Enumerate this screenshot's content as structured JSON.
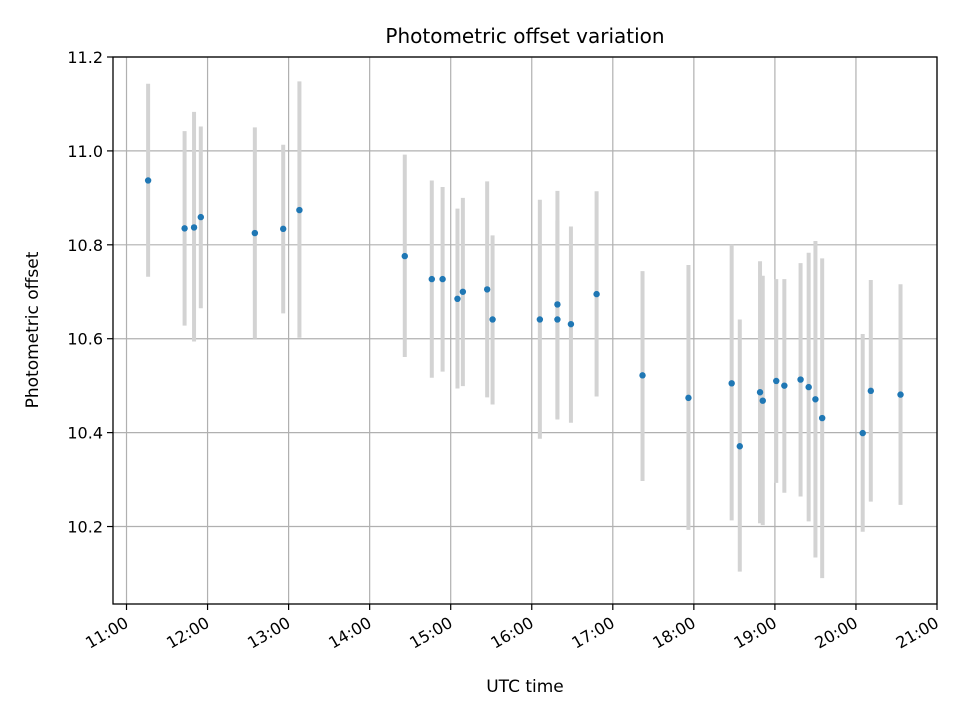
{
  "chart_data": {
    "type": "scatter",
    "title": "Photometric offset variation",
    "xlabel": "UTC time",
    "ylabel": "Photometric offset",
    "x_ticks": [
      "11:00",
      "12:00",
      "13:00",
      "14:00",
      "15:00",
      "16:00",
      "17:00",
      "18:00",
      "19:00",
      "20:00",
      "21:00"
    ],
    "y_ticks": [
      "10.2",
      "10.4",
      "10.6",
      "10.8",
      "11.0",
      "11.2"
    ],
    "xlim": [
      "10:50",
      "21:00"
    ],
    "ylim": [
      10.035,
      11.2
    ],
    "grid": true,
    "marker_color": "#1f77b4",
    "errorbar_color": "#d3d3d3",
    "points": [
      {
        "t": "11:16",
        "y": 10.937,
        "lo": 10.732,
        "hi": 11.143
      },
      {
        "t": "11:43",
        "y": 10.835,
        "lo": 10.628,
        "hi": 11.042
      },
      {
        "t": "11:50",
        "y": 10.837,
        "lo": 10.594,
        "hi": 11.083
      },
      {
        "t": "11:55",
        "y": 10.859,
        "lo": 10.665,
        "hi": 11.052
      },
      {
        "t": "12:35",
        "y": 10.825,
        "lo": 10.6,
        "hi": 11.05
      },
      {
        "t": "12:56",
        "y": 10.834,
        "lo": 10.654,
        "hi": 11.013
      },
      {
        "t": "13:08",
        "y": 10.874,
        "lo": 10.602,
        "hi": 11.148
      },
      {
        "t": "14:26",
        "y": 10.776,
        "lo": 10.561,
        "hi": 10.992
      },
      {
        "t": "14:46",
        "y": 10.727,
        "lo": 10.517,
        "hi": 10.937
      },
      {
        "t": "14:54",
        "y": 10.727,
        "lo": 10.53,
        "hi": 10.923
      },
      {
        "t": "15:05",
        "y": 10.685,
        "lo": 10.494,
        "hi": 10.877
      },
      {
        "t": "15:09",
        "y": 10.7,
        "lo": 10.499,
        "hi": 10.9
      },
      {
        "t": "15:27",
        "y": 10.705,
        "lo": 10.475,
        "hi": 10.935
      },
      {
        "t": "15:31",
        "y": 10.641,
        "lo": 10.46,
        "hi": 10.82
      },
      {
        "t": "16:06",
        "y": 10.641,
        "lo": 10.387,
        "hi": 10.896
      },
      {
        "t": "16:19",
        "y": 10.641,
        "lo": 10.428,
        "hi": 10.852
      },
      {
        "t": "16:19",
        "y": 10.673,
        "lo": 10.43,
        "hi": 10.915
      },
      {
        "t": "16:29",
        "y": 10.631,
        "lo": 10.421,
        "hi": 10.839
      },
      {
        "t": "16:48",
        "y": 10.695,
        "lo": 10.477,
        "hi": 10.914
      },
      {
        "t": "17:22",
        "y": 10.522,
        "lo": 10.297,
        "hi": 10.744
      },
      {
        "t": "17:56",
        "y": 10.474,
        "lo": 10.193,
        "hi": 10.757
      },
      {
        "t": "18:28",
        "y": 10.505,
        "lo": 10.213,
        "hi": 10.8
      },
      {
        "t": "18:34",
        "y": 10.371,
        "lo": 10.104,
        "hi": 10.641
      },
      {
        "t": "18:49",
        "y": 10.486,
        "lo": 10.207,
        "hi": 10.765
      },
      {
        "t": "18:51",
        "y": 10.468,
        "lo": 10.203,
        "hi": 10.734
      },
      {
        "t": "19:01",
        "y": 10.51,
        "lo": 10.293,
        "hi": 10.727
      },
      {
        "t": "19:07",
        "y": 10.5,
        "lo": 10.272,
        "hi": 10.727
      },
      {
        "t": "19:19",
        "y": 10.513,
        "lo": 10.264,
        "hi": 10.761
      },
      {
        "t": "19:25",
        "y": 10.497,
        "lo": 10.211,
        "hi": 10.783
      },
      {
        "t": "19:30",
        "y": 10.471,
        "lo": 10.134,
        "hi": 10.808
      },
      {
        "t": "19:35",
        "y": 10.431,
        "lo": 10.09,
        "hi": 10.771
      },
      {
        "t": "20:05",
        "y": 10.399,
        "lo": 10.189,
        "hi": 10.61
      },
      {
        "t": "20:11",
        "y": 10.489,
        "lo": 10.253,
        "hi": 10.725
      },
      {
        "t": "20:33",
        "y": 10.481,
        "lo": 10.246,
        "hi": 10.716
      }
    ]
  }
}
